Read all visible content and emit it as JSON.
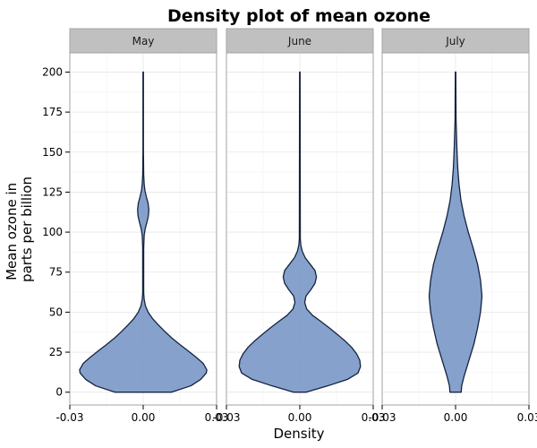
{
  "chart_data": {
    "type": "violin",
    "title": "Density plot of mean ozone",
    "xlabel": "Density",
    "ylabel_lines": [
      "Mean ozone in",
      "parts per billion"
    ],
    "ylim": [
      -8,
      212
    ],
    "xlim": [
      -0.03,
      0.03
    ],
    "y_ticks": [
      0,
      25,
      50,
      75,
      100,
      125,
      150,
      175,
      200
    ],
    "x_ticks": [
      -0.03,
      0.0,
      0.03
    ],
    "x_tick_labels": [
      "-0.03",
      "0.00",
      "0.03"
    ],
    "grid": true,
    "fill_color": "#7f9cc9",
    "line_color": "#14233f",
    "strip_fill": "#c0c0c0",
    "panels": [
      {
        "name": "May",
        "density_profile": [
          [
            0,
            0.0115
          ],
          [
            4,
            0.0195
          ],
          [
            8,
            0.0235
          ],
          [
            12,
            0.0258
          ],
          [
            14,
            0.026
          ],
          [
            18,
            0.0245
          ],
          [
            22,
            0.0215
          ],
          [
            26,
            0.0182
          ],
          [
            30,
            0.0148
          ],
          [
            34,
            0.0116
          ],
          [
            38,
            0.0088
          ],
          [
            42,
            0.0062
          ],
          [
            46,
            0.0038
          ],
          [
            50,
            0.002
          ],
          [
            54,
            0.0009
          ],
          [
            58,
            0.0004
          ],
          [
            62,
            0.0002
          ],
          [
            70,
            0.0002
          ],
          [
            80,
            0.0002
          ],
          [
            90,
            0.0002
          ],
          [
            98,
            0.0004
          ],
          [
            102,
            0.0008
          ],
          [
            106,
            0.0015
          ],
          [
            110,
            0.0021
          ],
          [
            114,
            0.0023
          ],
          [
            118,
            0.002
          ],
          [
            122,
            0.0013
          ],
          [
            126,
            0.0007
          ],
          [
            130,
            0.0004
          ],
          [
            136,
            0.0002
          ],
          [
            150,
            0.0001
          ],
          [
            200,
            0.0001
          ]
        ]
      },
      {
        "name": "June",
        "density_profile": [
          [
            0,
            0.0025
          ],
          [
            4,
            0.0115
          ],
          [
            8,
            0.0195
          ],
          [
            12,
            0.0238
          ],
          [
            16,
            0.0248
          ],
          [
            20,
            0.0245
          ],
          [
            24,
            0.0232
          ],
          [
            28,
            0.0212
          ],
          [
            32,
            0.0185
          ],
          [
            36,
            0.0154
          ],
          [
            40,
            0.0122
          ],
          [
            44,
            0.0088
          ],
          [
            48,
            0.0052
          ],
          [
            52,
            0.0028
          ],
          [
            56,
            0.002
          ],
          [
            60,
            0.0025
          ],
          [
            64,
            0.0045
          ],
          [
            68,
            0.0062
          ],
          [
            72,
            0.0068
          ],
          [
            76,
            0.0062
          ],
          [
            80,
            0.0042
          ],
          [
            84,
            0.0022
          ],
          [
            88,
            0.001
          ],
          [
            92,
            0.0004
          ],
          [
            96,
            0.0002
          ],
          [
            200,
            0.0001
          ]
        ]
      },
      {
        "name": "July",
        "density_profile": [
          [
            0,
            0.0023
          ],
          [
            4,
            0.0025
          ],
          [
            10,
            0.0035
          ],
          [
            20,
            0.0055
          ],
          [
            30,
            0.0075
          ],
          [
            40,
            0.009
          ],
          [
            50,
            0.0102
          ],
          [
            60,
            0.0108
          ],
          [
            70,
            0.0102
          ],
          [
            80,
            0.009
          ],
          [
            90,
            0.0072
          ],
          [
            100,
            0.0052
          ],
          [
            110,
            0.0035
          ],
          [
            120,
            0.0022
          ],
          [
            130,
            0.0014
          ],
          [
            140,
            0.0009
          ],
          [
            150,
            0.0006
          ],
          [
            160,
            0.0004
          ],
          [
            170,
            0.0002
          ],
          [
            200,
            0.0001
          ]
        ]
      }
    ]
  }
}
